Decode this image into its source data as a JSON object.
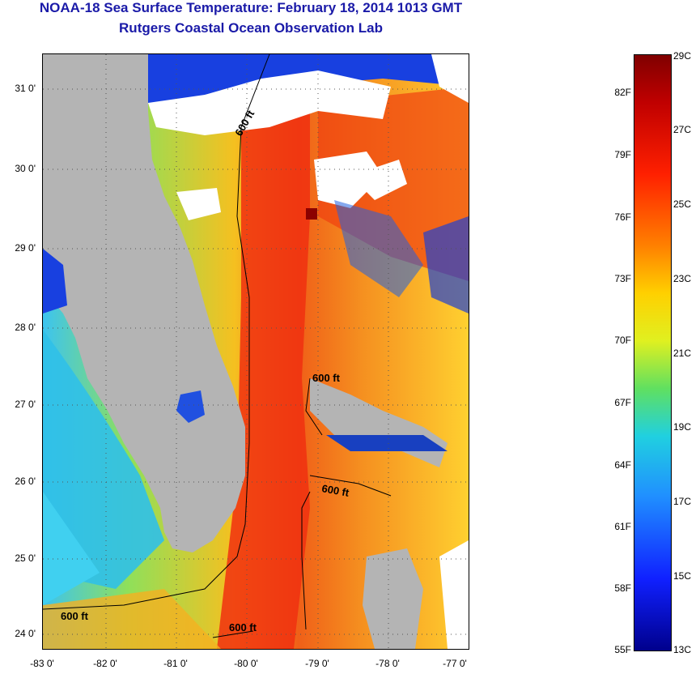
{
  "title_line1": "NOAA-18 Sea Surface Temperature:  February 18, 2014 1013 GMT",
  "title_line2": "Rutgers Coastal Ocean Observation Lab",
  "lat_ticks": [
    "31 0'",
    "30 0'",
    "29 0'",
    "28 0'",
    "27 0'",
    "26 0'",
    "25 0'",
    "24 0'"
  ],
  "lon_ticks": [
    "-83 0'",
    "-82 0'",
    "-81 0'",
    "-80 0'",
    "-79 0'",
    "-78 0'",
    "-77 0'"
  ],
  "contour_labels": [
    "600 ft",
    "600 ft",
    "600 ft",
    "600 ft",
    "600 ft"
  ],
  "colorbar": {
    "fahrenheit": [
      "82F",
      "79F",
      "76F",
      "73F",
      "70F",
      "67F",
      "64F",
      "61F",
      "58F",
      "55F"
    ],
    "celsius": [
      "29C",
      "27C",
      "25C",
      "23C",
      "21C",
      "19C",
      "17C",
      "15C",
      "13C"
    ]
  },
  "colors": {
    "land": "#b4b4b4",
    "cloud": "#ffffff",
    "title": "#1a1aa8"
  }
}
